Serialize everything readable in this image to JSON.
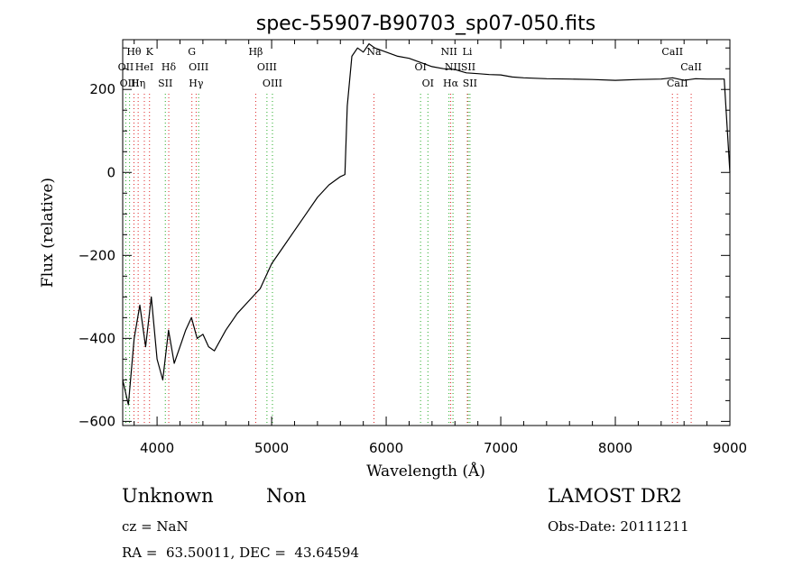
{
  "chart_data": {
    "type": "line",
    "title": "spec-55907-B90703_sp07-050.fits",
    "xlabel": "Wavelength (Å)",
    "ylabel": "Flux (relative)",
    "xlim": [
      3700,
      9000
    ],
    "ylim": [
      -610,
      320
    ],
    "x_ticks": [
      4000,
      5000,
      6000,
      7000,
      8000,
      9000
    ],
    "x_tick_labels": [
      "4000",
      "5000",
      "6000",
      "7000",
      "8000",
      "9000"
    ],
    "y_ticks": [
      -600,
      -400,
      -200,
      0,
      200
    ],
    "y_tick_labels": [
      "−600",
      "−400",
      "−200",
      "0",
      "200"
    ],
    "grid": false,
    "series": [
      {
        "x": [
          3700,
          3750,
          3800,
          3850,
          3900,
          3950,
          4000,
          4050,
          4100,
          4150,
          4200,
          4250,
          4300,
          4350,
          4400,
          4450,
          4500,
          4600,
          4700,
          4800,
          4900,
          5000,
          5100,
          5200,
          5300,
          5400,
          5500,
          5600,
          5640,
          5660,
          5700,
          5750,
          5800,
          5850,
          5900,
          6000,
          6100,
          6200,
          6300,
          6400,
          6500,
          6600,
          6700,
          6800,
          6900,
          7000,
          7100,
          7200,
          7400,
          7600,
          7800,
          8000,
          8200,
          8400,
          8500,
          8600,
          8700,
          8800,
          8950,
          9000
        ],
        "y": [
          -500,
          -560,
          -400,
          -320,
          -420,
          -300,
          -450,
          -500,
          -380,
          -460,
          -420,
          -380,
          -350,
          -400,
          -390,
          -420,
          -430,
          -380,
          -340,
          -310,
          -280,
          -220,
          -180,
          -140,
          -100,
          -60,
          -30,
          -10,
          -5,
          160,
          280,
          300,
          290,
          310,
          300,
          290,
          280,
          275,
          265,
          255,
          250,
          248,
          240,
          238,
          236,
          235,
          230,
          228,
          226,
          225,
          224,
          222,
          224,
          225,
          228,
          222,
          226,
          225,
          225,
          0
        ]
      }
    ],
    "line_markers": [
      {
        "name": "Hθ",
        "wl": 3798,
        "color": "#dd2222",
        "row": 0
      },
      {
        "name": "K",
        "wl": 3934,
        "color": "#dd2222",
        "row": 0
      },
      {
        "name": "OII",
        "wl": 3727,
        "color": "#22aa22",
        "row": 1
      },
      {
        "name": "HeI",
        "wl": 3889,
        "color": "#dd2222",
        "row": 1
      },
      {
        "name": "Hδ",
        "wl": 4102,
        "color": "#dd2222",
        "row": 1
      },
      {
        "name": "OIII",
        "wl": 3760,
        "color": "#22aa22",
        "row": 2
      },
      {
        "name": "Hη",
        "wl": 3835,
        "color": "#dd2222",
        "row": 2
      },
      {
        "name": "SII",
        "wl": 4072,
        "color": "#22aa22",
        "row": 2
      },
      {
        "name": "G",
        "wl": 4304,
        "color": "#dd2222",
        "row": 0
      },
      {
        "name": "OIII",
        "wl": 4363,
        "color": "#22aa22",
        "row": 1
      },
      {
        "name": "Hγ",
        "wl": 4341,
        "color": "#dd2222",
        "row": 2
      },
      {
        "name": "Hβ",
        "wl": 4861,
        "color": "#dd2222",
        "row": 0
      },
      {
        "name": "OIII",
        "wl": 4959,
        "color": "#22aa22",
        "row": 1
      },
      {
        "name": "OIII",
        "wl": 5007,
        "color": "#22aa22",
        "row": 2
      },
      {
        "name": "Na",
        "wl": 5893,
        "color": "#dd2222",
        "row": 0
      },
      {
        "name": "OI",
        "wl": 6300,
        "color": "#22aa22",
        "row": 1
      },
      {
        "name": "OI",
        "wl": 6364,
        "color": "#22aa22",
        "row": 2
      },
      {
        "name": "NII",
        "wl": 6548,
        "color": "#22aa22",
        "row": 0
      },
      {
        "name": "NII",
        "wl": 6583,
        "color": "#22aa22",
        "row": 1
      },
      {
        "name": "Hα",
        "wl": 6563,
        "color": "#dd2222",
        "row": 2
      },
      {
        "name": "Li",
        "wl": 6708,
        "color": "#dd2222",
        "row": 0
      },
      {
        "name": "SII",
        "wl": 6716,
        "color": "#22aa22",
        "row": 1
      },
      {
        "name": "SII",
        "wl": 6731,
        "color": "#22aa22",
        "row": 2
      },
      {
        "name": "CaII",
        "wl": 8498,
        "color": "#dd2222",
        "row": 0
      },
      {
        "name": "CaII",
        "wl": 8662,
        "color": "#dd2222",
        "row": 1
      },
      {
        "name": "CaII",
        "wl": 8542,
        "color": "#dd2222",
        "row": 2
      }
    ]
  },
  "info": {
    "class_label": "Unknown",
    "subclass_label": "Non",
    "survey_label": "LAMOST DR2",
    "cz_text": "cz = NaN",
    "obs_date_text": "Obs-Date: 20111211",
    "coords_text": "RA =  63.50011, DEC =  43.64594"
  },
  "colors": {
    "marker_red": "#dd2222",
    "marker_green": "#22aa22",
    "spectrum": "#000000"
  }
}
